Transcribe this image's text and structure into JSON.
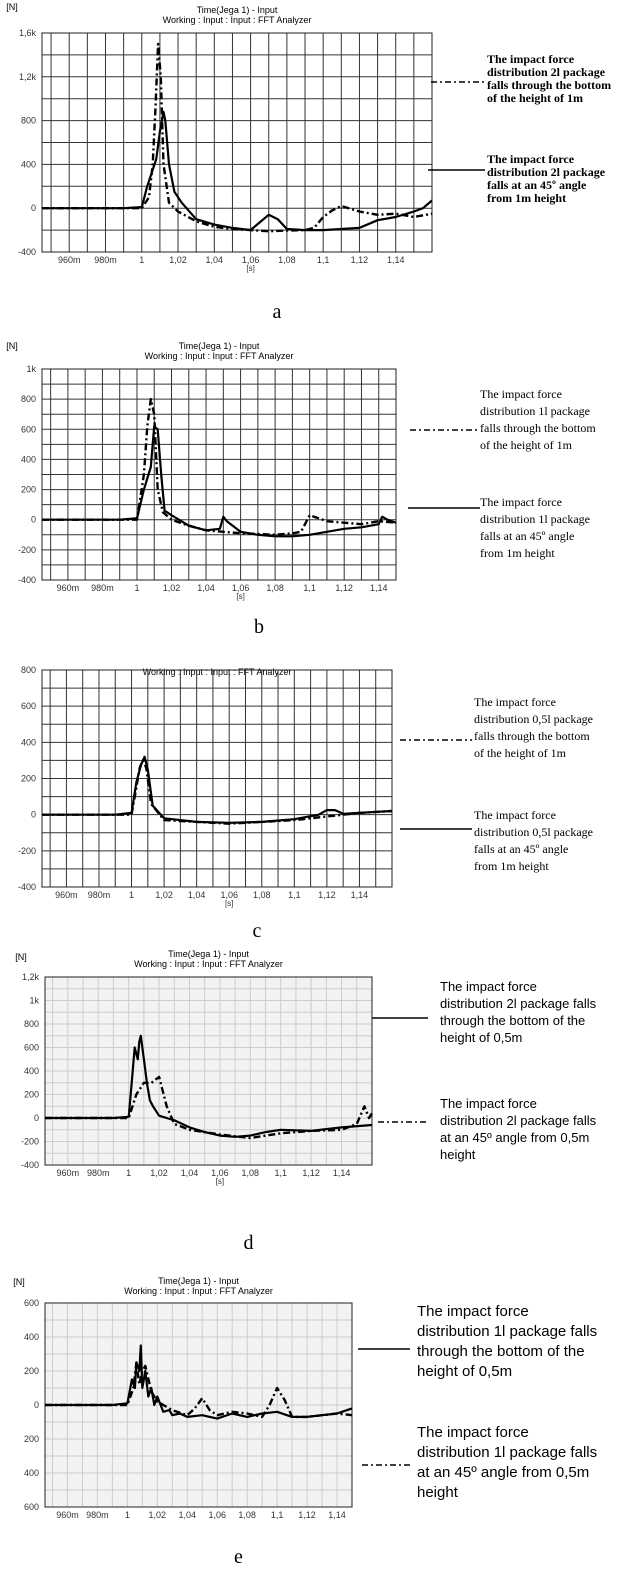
{
  "chart_data": [
    {
      "type": "line",
      "unit_label": "[N]",
      "title": "Time(Jega 1) - Input",
      "subtitle": "Working : Input : Input : FFT Analyzer",
      "xlabel": "[s]",
      "x_ticks": [
        "960m",
        "980m",
        "1",
        "1,02",
        "1,04",
        "1,06",
        "1,08",
        "1,1",
        "1,12",
        "1,14"
      ],
      "y_ticks": [
        "1,6k",
        "1,2k",
        "800",
        "400",
        "0",
        "-400"
      ],
      "xlim": [
        0.945,
        1.16
      ],
      "ylim": [
        -400,
        1600
      ],
      "grid": true,
      "caption": "a",
      "series": [
        {
          "name": "The impact force distribution 2l package falls through the bottom of the height of 1m",
          "dash": "dashdot",
          "x": [
            0.945,
            0.99,
            1.0,
            1.004,
            1.006,
            1.0075,
            1.009,
            1.0105,
            1.012,
            1.015,
            1.02,
            1.03,
            1.04,
            1.05,
            1.06,
            1.07,
            1.08,
            1.09,
            1.095,
            1.1,
            1.105,
            1.11,
            1.12,
            1.13,
            1.14,
            1.15,
            1.16
          ],
          "y": [
            0,
            0,
            0,
            100,
            400,
            900,
            1500,
            1200,
            400,
            50,
            -30,
            -120,
            -170,
            -190,
            -200,
            -210,
            -205,
            -200,
            -180,
            -80,
            -20,
            20,
            -30,
            -60,
            -50,
            -80,
            -50
          ]
        },
        {
          "name": "The impact force distribution 2l package falls at an 45º angle from 1m height",
          "dash": "solid",
          "x": [
            0.945,
            0.99,
            1.0,
            1.003,
            1.006,
            1.008,
            1.01,
            1.012,
            1.013,
            1.015,
            1.018,
            1.022,
            1.03,
            1.04,
            1.05,
            1.06,
            1.065,
            1.07,
            1.075,
            1.08,
            1.09,
            1.1,
            1.11,
            1.12,
            1.13,
            1.14,
            1.15,
            1.155,
            1.16
          ],
          "y": [
            0,
            0,
            10,
            200,
            350,
            450,
            700,
            880,
            800,
            400,
            150,
            50,
            -100,
            -150,
            -180,
            -200,
            -130,
            -60,
            -100,
            -190,
            -200,
            -200,
            -190,
            -180,
            -110,
            -80,
            -30,
            0,
            70
          ]
        }
      ],
      "legend": [
        {
          "dash": "dashdot",
          "lines": [
            "The impact force",
            "distribution 2l package",
            "falls through the bottom",
            "of the height of 1m"
          ]
        },
        {
          "dash": "solid",
          "lines": [
            "The impact force",
            "distribution 2l package",
            "falls at an 45º angle",
            "from 1m height"
          ]
        }
      ]
    },
    {
      "type": "line",
      "unit_label": "[N]",
      "title": "Time(Jega 1) - Input",
      "subtitle": "Working : Input : Input : FFT Analyzer",
      "xlabel": "[s]",
      "x_ticks": [
        "960m",
        "980m",
        "1",
        "1,02",
        "1,04",
        "1,06",
        "1,08",
        "1,1",
        "1,12",
        "1,14"
      ],
      "y_ticks": [
        "1k",
        "800",
        "600",
        "400",
        "200",
        "0",
        "-200",
        "-400"
      ],
      "xlim": [
        0.945,
        1.15
      ],
      "ylim": [
        -400,
        1000
      ],
      "grid": true,
      "caption": "b",
      "series": [
        {
          "name": "The impact force distribution 1l package falls through the bottom of the height of 1m",
          "dash": "dashdot",
          "x": [
            0.945,
            0.99,
            1.0,
            1.004,
            1.006,
            1.008,
            1.01,
            1.012,
            1.015,
            1.02,
            1.03,
            1.04,
            1.05,
            1.06,
            1.07,
            1.08,
            1.09,
            1.095,
            1.1,
            1.11,
            1.12,
            1.13,
            1.14,
            1.15
          ],
          "y": [
            0,
            0,
            0,
            300,
            620,
            800,
            700,
            200,
            50,
            0,
            -40,
            -70,
            -80,
            -90,
            -95,
            -100,
            -90,
            -80,
            30,
            -10,
            -20,
            -30,
            -10,
            -20
          ]
        },
        {
          "name": "The impact force distribution 1l package falls at an 45º angle from 1m height",
          "dash": "solid",
          "x": [
            0.945,
            0.99,
            1.0,
            1.004,
            1.008,
            1.01,
            1.012,
            1.014,
            1.016,
            1.02,
            1.03,
            1.04,
            1.048,
            1.05,
            1.052,
            1.06,
            1.07,
            1.08,
            1.09,
            1.1,
            1.11,
            1.12,
            1.13,
            1.14,
            1.142,
            1.145,
            1.15
          ],
          "y": [
            0,
            0,
            10,
            200,
            350,
            620,
            600,
            300,
            60,
            30,
            -40,
            -70,
            -60,
            20,
            -10,
            -80,
            -100,
            -110,
            -110,
            -100,
            -80,
            -60,
            -50,
            -30,
            20,
            0,
            -20
          ]
        }
      ],
      "legend": [
        {
          "dash": "dashdot",
          "lines": [
            "The impact force",
            "distribution 1l package",
            "falls through the bottom",
            "of the height of 1m"
          ]
        },
        {
          "dash": "solid",
          "lines": [
            "The impact force",
            "distribution 1l package",
            "falls at an 45º angle",
            "from 1m height"
          ]
        }
      ]
    },
    {
      "type": "line",
      "subtitle": "Working : Input : Input : FFT Analyzer",
      "xlabel": "[s]",
      "x_ticks": [
        "960m",
        "980m",
        "1",
        "1,02",
        "1,04",
        "1,06",
        "1,08",
        "1,1",
        "1,12",
        "1,14"
      ],
      "y_ticks": [
        "800",
        "600",
        "400",
        "200",
        "0",
        "-200",
        "-400"
      ],
      "xlim": [
        0.945,
        1.16
      ],
      "ylim": [
        -400,
        800
      ],
      "grid": true,
      "caption": "c",
      "series": [
        {
          "name": "The impact force distribution 0,5l package falls through the bottom of the height of 1m",
          "dash": "dashdot",
          "x": [
            0.945,
            0.99,
            1.0,
            1.003,
            1.005,
            1.007,
            1.009,
            1.012,
            1.02,
            1.04,
            1.06,
            1.08,
            1.1,
            1.12,
            1.14,
            1.16
          ],
          "y": [
            0,
            0,
            0,
            150,
            260,
            300,
            260,
            60,
            -30,
            -40,
            -50,
            -40,
            -30,
            -10,
            10,
            20
          ]
        },
        {
          "name": "The impact force distribution 0,5l package falls at an 45º angle from 1m height",
          "dash": "solid",
          "x": [
            0.945,
            0.99,
            1.0,
            1.003,
            1.006,
            1.008,
            1.01,
            1.013,
            1.02,
            1.04,
            1.06,
            1.08,
            1.1,
            1.115,
            1.12,
            1.125,
            1.13,
            1.14,
            1.16
          ],
          "y": [
            0,
            0,
            10,
            180,
            280,
            320,
            250,
            50,
            -20,
            -40,
            -45,
            -40,
            -25,
            0,
            25,
            25,
            5,
            10,
            20
          ]
        }
      ],
      "legend": [
        {
          "dash": "dashdot",
          "lines": [
            "The impact force",
            "distribution 0,5l package",
            "falls through the bottom",
            "of the height of 1m"
          ]
        },
        {
          "dash": "solid",
          "lines": [
            "The impact force",
            "distribution 0,5l package",
            "falls at an 45º angle",
            "from 1m height"
          ]
        }
      ]
    },
    {
      "type": "line",
      "unit_label": "[N]",
      "title": "Time(Jega 1) - Input",
      "subtitle": "Working : Input : Input : FFT Analyzer",
      "xlabel": "[s]",
      "x_ticks": [
        "960m",
        "980m",
        "1",
        "1,02",
        "1,04",
        "1,06",
        "1,08",
        "1,1",
        "1,12",
        "1,14"
      ],
      "y_ticks": [
        "1,2k",
        "1k",
        "800",
        "600",
        "400",
        "200",
        "0",
        "-200",
        "-400"
      ],
      "xlim": [
        0.945,
        1.16
      ],
      "ylim": [
        -400,
        1200
      ],
      "grid": true,
      "caption": "d",
      "series": [
        {
          "name": "The impact force distribution 2l package falls through the bottom of the height of 0,5m",
          "dash": "solid",
          "x": [
            0.945,
            0.99,
            1.0,
            1.002,
            1.004,
            1.006,
            1.007,
            1.008,
            1.01,
            1.012,
            1.014,
            1.016,
            1.02,
            1.025,
            1.03,
            1.04,
            1.05,
            1.06,
            1.07,
            1.08,
            1.09,
            1.1,
            1.12,
            1.14,
            1.16
          ],
          "y": [
            0,
            0,
            10,
            300,
            600,
            500,
            650,
            700,
            500,
            300,
            150,
            100,
            20,
            0,
            -20,
            -80,
            -120,
            -150,
            -160,
            -150,
            -120,
            -100,
            -110,
            -80,
            -60
          ]
        },
        {
          "name": "The impact force distribution 2l package falls at an 45º angle from 0,5m height",
          "dash": "dashdot",
          "x": [
            0.945,
            0.99,
            1.0,
            1.005,
            1.01,
            1.015,
            1.02,
            1.025,
            1.03,
            1.04,
            1.06,
            1.08,
            1.1,
            1.12,
            1.14,
            1.15,
            1.155,
            1.158,
            1.16
          ],
          "y": [
            0,
            0,
            0,
            200,
            300,
            300,
            350,
            100,
            -50,
            -100,
            -140,
            -170,
            -130,
            -110,
            -100,
            -50,
            100,
            0,
            40
          ]
        }
      ],
      "legend": [
        {
          "dash": "solid",
          "lines": [
            "The impact force",
            "distribution 2l package falls",
            "through the bottom of the",
            "height of 0,5m"
          ]
        },
        {
          "dash": "dashdot",
          "lines": [
            "The impact force",
            "distribution 2l package falls",
            "at an 45º angle from 0,5m",
            "height"
          ]
        }
      ]
    },
    {
      "type": "line",
      "unit_label": "[N]",
      "title": "Time(Jega 1) - Input",
      "subtitle": "Working : Input : Input : FFT Analyzer",
      "x_ticks": [
        "960m",
        "980m",
        "1",
        "1,02",
        "1,04",
        "1,06",
        "1,08",
        "1,1",
        "1,12",
        "1,14"
      ],
      "y_ticks": [
        "600",
        "400",
        "200",
        "0",
        "200",
        "400",
        "600"
      ],
      "xlim": [
        0.945,
        1.15
      ],
      "ylim": [
        -600,
        600
      ],
      "grid": true,
      "caption": "e",
      "series": [
        {
          "name": "The impact force distribution 1l package falls through the bottom of the height of 0,5m",
          "dash": "solid",
          "x": [
            0.945,
            0.99,
            1.0,
            1.003,
            1.005,
            1.006,
            1.008,
            1.009,
            1.01,
            1.012,
            1.014,
            1.016,
            1.018,
            1.02,
            1.024,
            1.028,
            1.03,
            1.035,
            1.04,
            1.05,
            1.06,
            1.07,
            1.08,
            1.09,
            1.1,
            1.11,
            1.12,
            1.13,
            1.14,
            1.15
          ],
          "y": [
            0,
            0,
            10,
            150,
            100,
            250,
            200,
            350,
            100,
            200,
            50,
            100,
            0,
            50,
            -40,
            -30,
            -60,
            -50,
            -70,
            -60,
            -80,
            -50,
            -70,
            -50,
            -40,
            -70,
            -70,
            -60,
            -50,
            -20
          ]
        },
        {
          "name": "The impact force distribution 1l package falls at an 45º angle from 0,5m height",
          "dash": "dashdot",
          "x": [
            0.945,
            0.99,
            1.0,
            1.004,
            1.006,
            1.008,
            1.01,
            1.012,
            1.016,
            1.02,
            1.03,
            1.04,
            1.045,
            1.05,
            1.055,
            1.06,
            1.07,
            1.08,
            1.09,
            1.095,
            1.1,
            1.105,
            1.11,
            1.12,
            1.13,
            1.14,
            1.15
          ],
          "y": [
            0,
            0,
            0,
            100,
            250,
            120,
            200,
            230,
            80,
            20,
            -30,
            -60,
            -20,
            40,
            -30,
            -60,
            -40,
            -50,
            -70,
            0,
            100,
            30,
            -70,
            -70,
            -60,
            -50,
            -60
          ]
        }
      ],
      "legend": [
        {
          "dash": "solid",
          "lines": [
            "The impact force",
            "distribution 1l package falls",
            "through the bottom of the",
            "height of 0,5m"
          ]
        },
        {
          "dash": "dashdot",
          "lines": [
            "The impact force",
            "distribution 1l package falls",
            "at an 45º angle from 0,5m",
            "height"
          ]
        }
      ]
    }
  ]
}
